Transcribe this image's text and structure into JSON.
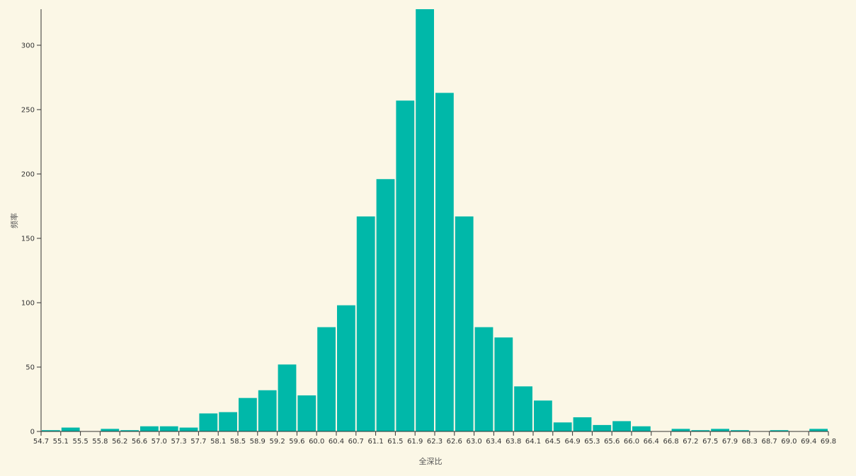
{
  "chart_data": {
    "type": "bar",
    "xlabel": "全深比",
    "ylabel": "频率",
    "colors": {
      "bar": "#00b8a9",
      "background": "#fbf7e6",
      "axis": "#333333"
    },
    "x_ticks": [
      "54.7",
      "55.1",
      "55.5",
      "55.8",
      "56.2",
      "56.6",
      "57.0",
      "57.3",
      "57.7",
      "58.1",
      "58.5",
      "58.9",
      "59.2",
      "59.6",
      "60.0",
      "60.4",
      "60.7",
      "61.1",
      "61.5",
      "61.9",
      "62.3",
      "62.6",
      "63.0",
      "63.4",
      "63.8",
      "64.1",
      "64.5",
      "64.9",
      "65.3",
      "65.6",
      "66.0",
      "66.4",
      "66.8",
      "67.2",
      "67.5",
      "67.9",
      "68.3",
      "68.7",
      "69.0",
      "69.4",
      "69.8"
    ],
    "values": [
      1,
      3,
      0,
      2,
      1,
      4,
      4,
      3,
      14,
      15,
      26,
      32,
      52,
      28,
      81,
      98,
      167,
      196,
      257,
      328,
      263,
      167,
      81,
      73,
      35,
      24,
      7,
      11,
      5,
      8,
      4,
      0,
      2,
      1,
      2,
      1,
      0,
      1,
      0,
      2
    ],
    "y_ticks": [
      0,
      50,
      100,
      150,
      200,
      250,
      300
    ],
    "ylim": [
      0,
      328
    ]
  }
}
